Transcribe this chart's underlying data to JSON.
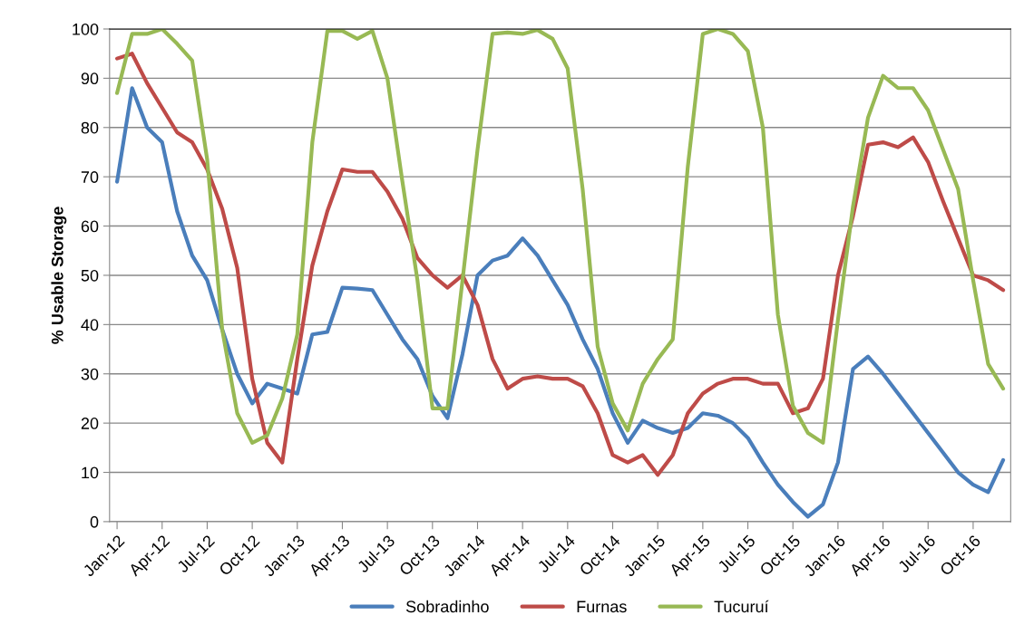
{
  "chart_data": {
    "type": "line",
    "ylabel": "% Usable Storage",
    "categories": [
      "Jan-12",
      null,
      null,
      "Apr-12",
      null,
      null,
      "Jul-12",
      null,
      null,
      "Oct-12",
      null,
      null,
      "Jan-13",
      null,
      null,
      "Apr-13",
      null,
      null,
      "Jul-13",
      null,
      null,
      "Oct-13",
      null,
      null,
      "Jan-14",
      null,
      null,
      "Apr-14",
      null,
      null,
      "Jul-14",
      null,
      null,
      "Oct-14",
      null,
      null,
      "Jan-15",
      null,
      null,
      "Apr-15",
      null,
      null,
      "Jul-15",
      null,
      null,
      "Oct-15",
      null,
      null,
      "Jan-16",
      null,
      null,
      "Apr-16",
      null,
      null,
      "Jul-16",
      null,
      null,
      "Oct-16",
      null,
      null
    ],
    "series": [
      {
        "name": "Sobradinho",
        "color": "#4a7ebb",
        "values": [
          69,
          88,
          80,
          77,
          63,
          54,
          49,
          39,
          30,
          24,
          28,
          27,
          26,
          38,
          38.5,
          47.5,
          47.3,
          47,
          42,
          37,
          33,
          25.5,
          21,
          34,
          50,
          53,
          54,
          57.5,
          54,
          49,
          44,
          37,
          31,
          22,
          16,
          20.5,
          19,
          18,
          19,
          22,
          21.5,
          20,
          17,
          12,
          7.5,
          4,
          1,
          3.5,
          12,
          31,
          33.5,
          30,
          26,
          22,
          18,
          14,
          10,
          7.5,
          6,
          12.5
        ]
      },
      {
        "name": "Furnas",
        "color": "#be4b48",
        "values": [
          94,
          95,
          89,
          84,
          79,
          77,
          71.5,
          63.5,
          51.5,
          29,
          16,
          12,
          33,
          52,
          63,
          71.5,
          71,
          71,
          67,
          61.5,
          53.5,
          50,
          47.5,
          50,
          44,
          33,
          27,
          29,
          29.5,
          29,
          29,
          27.5,
          22,
          13.5,
          12,
          13.5,
          9.5,
          13.5,
          22,
          26,
          28,
          29,
          29,
          28,
          28,
          22,
          23,
          29,
          50,
          62,
          76.5,
          77,
          76,
          78,
          73,
          65,
          57.5,
          50,
          49,
          47
        ]
      },
      {
        "name": "Tucuruí",
        "color": "#98b954",
        "values": [
          87,
          99,
          99,
          100,
          97,
          93.6,
          73.5,
          39,
          22,
          16,
          17.5,
          25,
          38,
          77,
          99.6,
          99.6,
          98,
          99.6,
          90,
          69,
          49,
          23,
          23,
          49,
          75.5,
          99,
          99.3,
          99,
          99.8,
          98,
          92,
          67.5,
          35.5,
          24,
          18.5,
          28,
          33,
          37,
          72,
          99,
          100,
          99,
          95.5,
          80,
          42,
          23.5,
          18,
          16,
          41,
          64,
          82,
          90.5,
          88,
          88,
          83.5,
          75.5,
          67.5,
          49,
          32,
          27
        ]
      }
    ],
    "ylim": [
      0,
      100
    ],
    "yticks": [
      0,
      10,
      20,
      30,
      40,
      50,
      60,
      70,
      80,
      90,
      100
    ],
    "grid": "y",
    "legend": "bottom",
    "marker": "none",
    "line_style": "solid"
  }
}
